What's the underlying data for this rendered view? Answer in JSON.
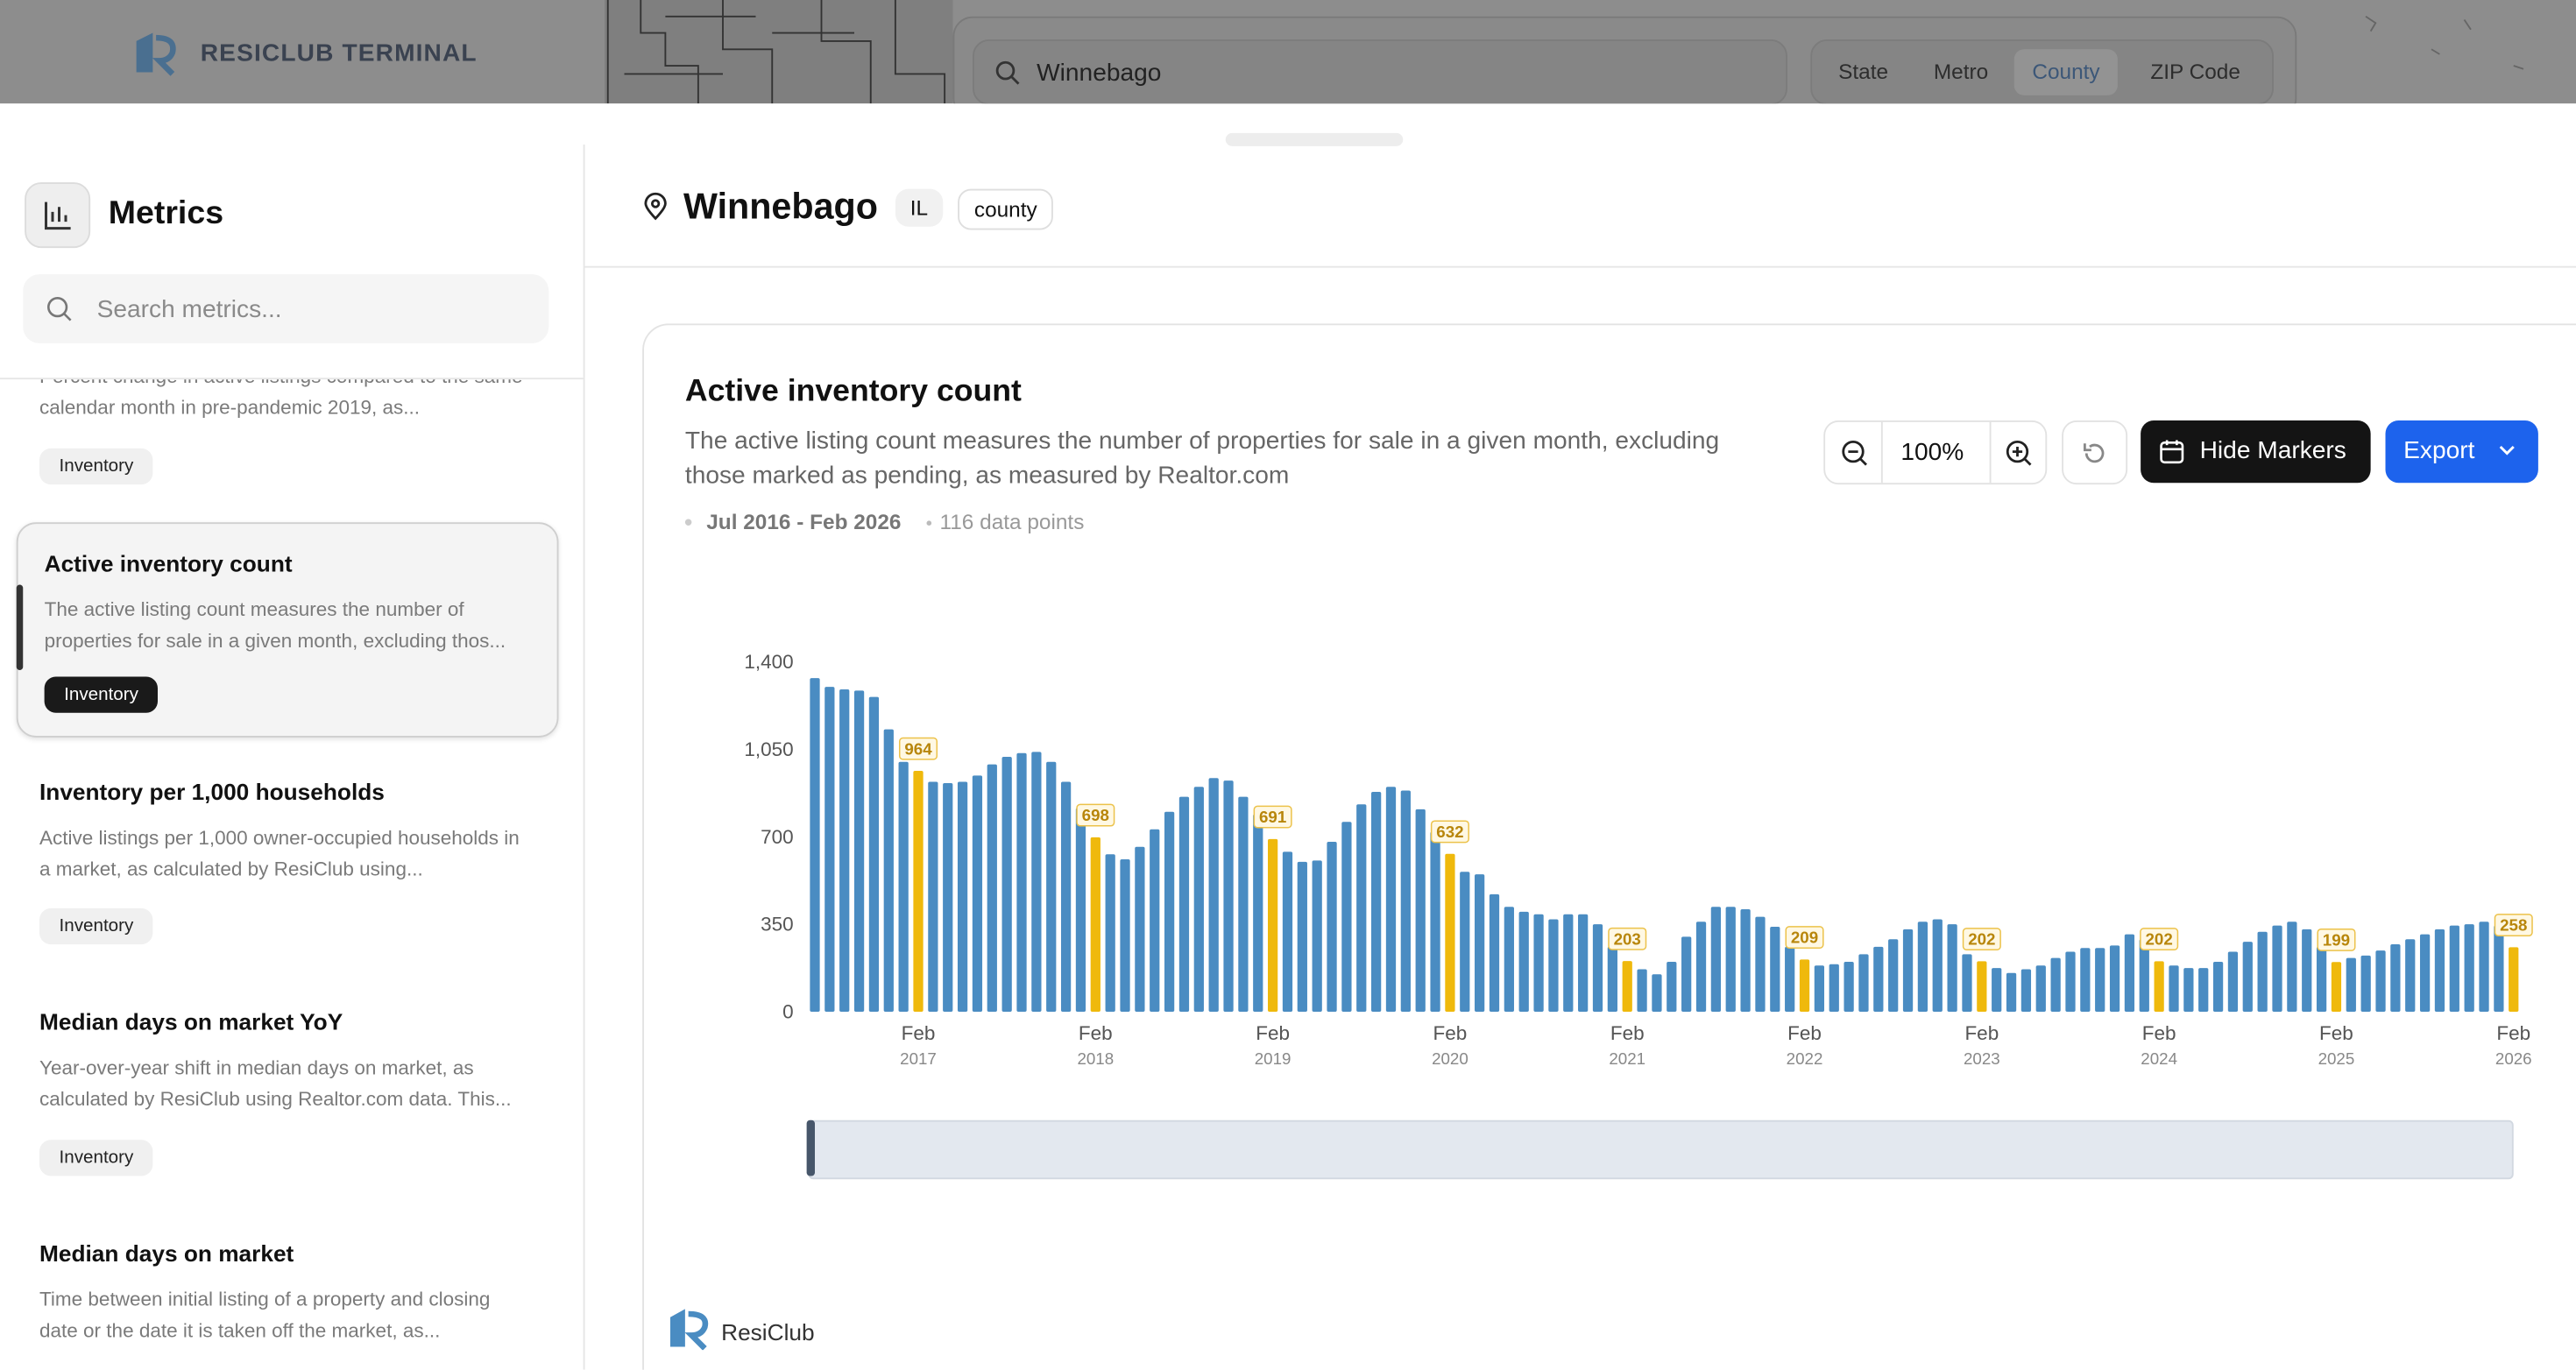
{
  "header": {
    "brand": "RESICLUB TERMINAL",
    "search": "Winnebago",
    "tabs": [
      "State",
      "Metro",
      "County",
      "ZIP Code"
    ]
  },
  "sidebar": {
    "title": "Metrics",
    "search_placeholder": "Search metrics...",
    "items": [
      {
        "description": "Percent change in active listings compared to the same calendar month in pre-pandemic 2019, as...",
        "tag": "Inventory"
      },
      {
        "title": "Active inventory count",
        "description": "The active listing count measures the number of properties for sale in a given month, excluding thos...",
        "tag": "Inventory"
      },
      {
        "title": "Inventory per 1,000 households",
        "description": "Active listings per 1,000 owner-occupied households in a market, as calculated by ResiClub using...",
        "tag": "Inventory"
      },
      {
        "title": "Median days on market YoY",
        "description": "Year-over-year shift in median days on market, as calculated by ResiClub using Realtor.com data. This...",
        "tag": "Inventory"
      },
      {
        "title": "Median days on market",
        "description": "Time between initial listing of a property and closing date or the date it is taken off the market, as..."
      }
    ]
  },
  "location": {
    "name": "Winnebago",
    "state": "IL",
    "level": "county"
  },
  "controls": {
    "zoom": "100%",
    "hide_markers": "Hide Markers",
    "export": "Export"
  },
  "meta": {
    "range": "Jul 2016 - Feb 2026",
    "points": "116 data points"
  },
  "footer": {
    "brand": "ResiClub"
  },
  "chart_data": {
    "type": "bar",
    "title": "Active inventory count",
    "description": "The active listing count measures the number of properties for sale in a given month, excluding those marked as pending, as measured by Realtor.com",
    "color": "#4a8cc2",
    "marker_color": "#efb90c",
    "categories": [
      null,
      null,
      null,
      null,
      null,
      null,
      null,
      [
        "Feb",
        "2017"
      ],
      null,
      null,
      null,
      null,
      null,
      null,
      null,
      null,
      null,
      null,
      null,
      [
        "Feb",
        "2018"
      ],
      null,
      null,
      null,
      null,
      null,
      null,
      null,
      null,
      null,
      null,
      null,
      [
        "Feb",
        "2019"
      ],
      null,
      null,
      null,
      null,
      null,
      null,
      null,
      null,
      null,
      null,
      null,
      [
        "Feb",
        "2020"
      ],
      null,
      null,
      null,
      null,
      null,
      null,
      null,
      null,
      null,
      null,
      null,
      [
        "Feb",
        "2021"
      ],
      null,
      null,
      null,
      null,
      null,
      null,
      null,
      null,
      null,
      null,
      null,
      [
        "Feb",
        "2022"
      ],
      null,
      null,
      null,
      null,
      null,
      null,
      null,
      null,
      null,
      null,
      null,
      [
        "Feb",
        "2023"
      ],
      null,
      null,
      null,
      null,
      null,
      null,
      null,
      null,
      null,
      null,
      null,
      [
        "Feb",
        "2024"
      ],
      null,
      null,
      null,
      null,
      null,
      null,
      null,
      null,
      null,
      null,
      null,
      [
        "Feb",
        "2025"
      ],
      null,
      null,
      null,
      null,
      null,
      null,
      null,
      null,
      null,
      null,
      null,
      [
        "Feb",
        "2026"
      ]
    ],
    "values": [
      1335,
      1300,
      1290,
      1285,
      1260,
      1130,
      1000,
      964,
      920,
      915,
      920,
      945,
      990,
      1020,
      1035,
      1040,
      1000,
      920,
      815,
      698,
      630,
      610,
      660,
      730,
      800,
      860,
      900,
      935,
      925,
      860,
      790,
      691,
      640,
      600,
      605,
      680,
      760,
      830,
      880,
      900,
      885,
      810,
      720,
      632,
      560,
      550,
      470,
      420,
      400,
      390,
      370,
      390,
      390,
      350,
      260,
      203,
      170,
      150,
      200,
      300,
      360,
      420,
      420,
      410,
      380,
      340,
      260,
      209,
      185,
      190,
      200,
      230,
      260,
      290,
      330,
      360,
      370,
      350,
      230,
      202,
      175,
      155,
      170,
      185,
      215,
      240,
      255,
      255,
      265,
      310,
      290,
      202,
      185,
      175,
      175,
      200,
      240,
      280,
      320,
      345,
      360,
      330,
      260,
      199,
      215,
      225,
      245,
      270,
      290,
      310,
      330,
      345,
      350,
      360,
      345,
      258
    ],
    "ylim": [
      0,
      1400
    ],
    "yticks": [
      0,
      350,
      700,
      {
        "value": 1050,
        "label": "1,050"
      },
      {
        "value": 1400,
        "label": "1,400"
      }
    ],
    "grid": false
  }
}
